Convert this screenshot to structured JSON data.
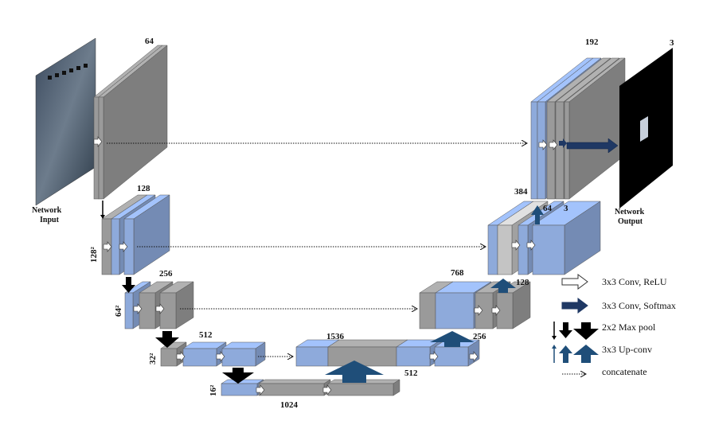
{
  "labels": {
    "network_input": [
      "Network",
      "Input"
    ],
    "network_output": [
      "Network",
      "Output"
    ],
    "enc1_channels": "64",
    "enc2_channels": "128",
    "enc2_size": "128²",
    "enc3_channels": "256",
    "enc3_size": "64²",
    "enc4_channels": "512",
    "enc4_size": "32²",
    "bottleneck_size": "16²",
    "bottleneck_channels": "1024",
    "dec4_concat": "1536",
    "dec4_channels": "512",
    "dec3_out": "256",
    "dec3_concat": "768",
    "dec3_channels": "128",
    "dec2_concat": "384",
    "dec2_channels": "64",
    "dec2_out": "3",
    "dec1_concat": "192",
    "output_channels": "3"
  },
  "legend": [
    {
      "icon": "white-arrow-icon",
      "label": "3x3 Conv, ReLU"
    },
    {
      "icon": "dark-blue-arrow-icon",
      "label": "3x3 Conv, Softmax"
    },
    {
      "icon": "black-down-arrow-icon",
      "label": "2x2 Max pool"
    },
    {
      "icon": "blue-up-arrow-icon",
      "label": "3x3 Up-conv"
    },
    {
      "icon": "dotted-arrow-icon",
      "label": "concatenate"
    }
  ],
  "colors": {
    "gray_block": "#9a9a9a",
    "blue_block": "#8eaadb",
    "upconv_arrow": "#1f4e79",
    "maxpool_arrow": "#000000",
    "output_map": "#000000"
  }
}
